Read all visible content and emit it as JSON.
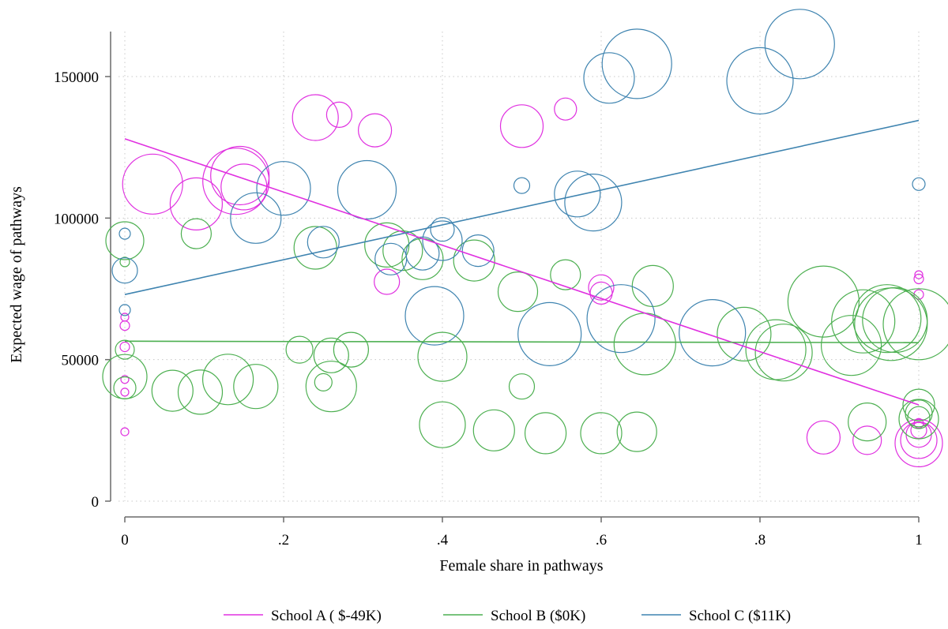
{
  "chart_data": {
    "type": "scatter",
    "xlabel": "Female share in pathways",
    "ylabel": "Expected wage of pathways",
    "xlim": [
      0,
      1
    ],
    "ylim": [
      0,
      165000
    ],
    "x_ticks": [
      0,
      0.2,
      0.4,
      0.6,
      0.8,
      1
    ],
    "x_tick_labels": [
      "0",
      ".2",
      ".4",
      ".6",
      ".8",
      "1"
    ],
    "y_ticks": [
      0,
      50000,
      100000,
      150000
    ],
    "y_tick_labels": [
      "0",
      "50000",
      "100000",
      "150000"
    ],
    "grid": true,
    "marker_style": "hollow circles, size proportional to pathway weight",
    "legend": {
      "position": "bottom"
    },
    "series": [
      {
        "name": "School A ( $-49K)",
        "color": "#e030e0",
        "fit": {
          "x": [
            0,
            1
          ],
          "y": [
            128000,
            34000
          ]
        },
        "points": [
          [
            0.0,
            24500,
            5
          ],
          [
            0.0,
            38500,
            5
          ],
          [
            0.0,
            43000,
            5
          ],
          [
            0.0,
            54500,
            6
          ],
          [
            0.0,
            62000,
            6
          ],
          [
            0.0,
            65000,
            5
          ],
          [
            0.035,
            112000,
            38
          ],
          [
            0.09,
            105000,
            33
          ],
          [
            0.14,
            113000,
            42
          ],
          [
            0.145,
            115000,
            37
          ],
          [
            0.15,
            111000,
            29
          ],
          [
            0.24,
            135500,
            29
          ],
          [
            0.27,
            136500,
            16
          ],
          [
            0.315,
            131000,
            21
          ],
          [
            0.33,
            77500,
            16
          ],
          [
            0.5,
            132500,
            27
          ],
          [
            0.555,
            138500,
            14
          ],
          [
            0.6,
            73500,
            14
          ],
          [
            0.6,
            75500,
            16
          ],
          [
            0.88,
            22500,
            21
          ],
          [
            0.935,
            21500,
            18
          ],
          [
            1.0,
            20500,
            30
          ],
          [
            1.0,
            21500,
            23
          ],
          [
            1.0,
            23500,
            16
          ],
          [
            1.0,
            27500,
            6
          ],
          [
            1.0,
            73000,
            6
          ],
          [
            1.0,
            78500,
            6
          ],
          [
            1.0,
            80000,
            5
          ],
          [
            1.0,
            25000,
            10
          ]
        ]
      },
      {
        "name": "School B ($0K)",
        "color": "#4caf50",
        "fit": {
          "x": [
            0,
            1
          ],
          "y": [
            56500,
            56000
          ]
        },
        "points": [
          [
            0.0,
            92000,
            24
          ],
          [
            0.0,
            84500,
            6
          ],
          [
            0.0,
            53500,
            12
          ],
          [
            0.0,
            44000,
            28
          ],
          [
            0.0,
            40000,
            14
          ],
          [
            0.06,
            39000,
            26
          ],
          [
            0.09,
            94500,
            19
          ],
          [
            0.095,
            38500,
            28
          ],
          [
            0.13,
            43000,
            32
          ],
          [
            0.165,
            40500,
            28
          ],
          [
            0.22,
            53500,
            17
          ],
          [
            0.24,
            89500,
            27
          ],
          [
            0.25,
            42000,
            11
          ],
          [
            0.26,
            51500,
            22
          ],
          [
            0.26,
            40500,
            32
          ],
          [
            0.285,
            53500,
            22
          ],
          [
            0.33,
            90500,
            28
          ],
          [
            0.35,
            88500,
            25
          ],
          [
            0.375,
            85500,
            26
          ],
          [
            0.4,
            51000,
            31
          ],
          [
            0.4,
            27000,
            29
          ],
          [
            0.44,
            85000,
            26
          ],
          [
            0.465,
            25000,
            26
          ],
          [
            0.495,
            74000,
            25
          ],
          [
            0.5,
            40500,
            16
          ],
          [
            0.53,
            24000,
            26
          ],
          [
            0.555,
            80000,
            19
          ],
          [
            0.6,
            24000,
            26
          ],
          [
            0.645,
            24500,
            25
          ],
          [
            0.655,
            55500,
            39
          ],
          [
            0.665,
            76000,
            26
          ],
          [
            0.78,
            59000,
            34
          ],
          [
            0.82,
            53500,
            38
          ],
          [
            0.83,
            52500,
            36
          ],
          [
            0.88,
            70500,
            45
          ],
          [
            0.915,
            55000,
            38
          ],
          [
            0.93,
            63500,
            40
          ],
          [
            0.935,
            28000,
            24
          ],
          [
            0.96,
            64500,
            43
          ],
          [
            0.965,
            62500,
            46
          ],
          [
            0.97,
            64000,
            41
          ],
          [
            1.0,
            62500,
            45
          ],
          [
            1.0,
            34000,
            20
          ],
          [
            1.0,
            31000,
            17
          ],
          [
            1.0,
            29500,
            14
          ],
          [
            1.0,
            29000,
            25
          ]
        ]
      },
      {
        "name": "School C ($11K)",
        "color": "#3f84b0",
        "fit": {
          "x": [
            0,
            1
          ],
          "y": [
            73000,
            134500
          ]
        },
        "points": [
          [
            0.0,
            94500,
            7
          ],
          [
            0.0,
            81500,
            16
          ],
          [
            0.0,
            67500,
            7
          ],
          [
            0.165,
            100000,
            32
          ],
          [
            0.2,
            110500,
            34
          ],
          [
            0.25,
            91500,
            20
          ],
          [
            0.305,
            110000,
            37
          ],
          [
            0.335,
            85500,
            20
          ],
          [
            0.375,
            87500,
            21
          ],
          [
            0.39,
            65500,
            37
          ],
          [
            0.4,
            92000,
            25
          ],
          [
            0.4,
            96000,
            15
          ],
          [
            0.445,
            88500,
            20
          ],
          [
            0.5,
            111500,
            10
          ],
          [
            0.535,
            59000,
            40
          ],
          [
            0.57,
            108500,
            29
          ],
          [
            0.59,
            105500,
            36
          ],
          [
            0.61,
            149500,
            32
          ],
          [
            0.625,
            64500,
            43
          ],
          [
            0.645,
            154500,
            44
          ],
          [
            0.74,
            59500,
            42
          ],
          [
            0.8,
            148500,
            42
          ],
          [
            0.85,
            161500,
            44
          ],
          [
            1.0,
            112000,
            8
          ]
        ]
      }
    ]
  }
}
